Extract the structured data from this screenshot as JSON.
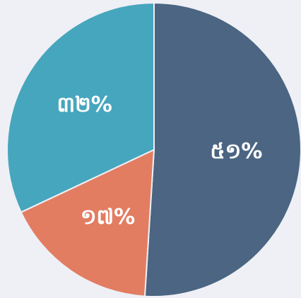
{
  "chart_data": {
    "type": "pie",
    "values": [
      51,
      17,
      32
    ],
    "value_labels": [
      "៥១%",
      "១៧%",
      "៣២%"
    ],
    "colors": [
      "#4b6582",
      "#e27d62",
      "#46a6bd"
    ]
  }
}
